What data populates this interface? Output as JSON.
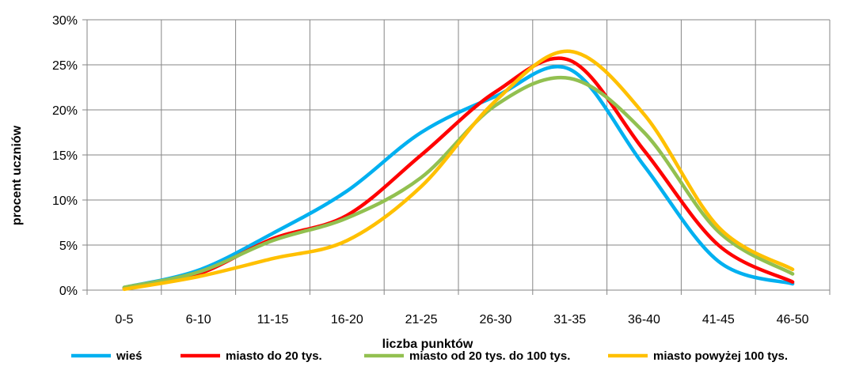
{
  "chart_data": {
    "type": "line",
    "title": "",
    "xlabel": "liczba punktów",
    "ylabel": "procent  uczniów",
    "categories": [
      "0-5",
      "6-10",
      "11-15",
      "16-20",
      "21-25",
      "26-30",
      "31-35",
      "36-40",
      "41-45",
      "46-50"
    ],
    "ylim": [
      0,
      30
    ],
    "yticks": [
      "0%",
      "5%",
      "10%",
      "15%",
      "20%",
      "25%",
      "30%"
    ],
    "grid": true,
    "legend_position": "bottom",
    "series": [
      {
        "name": "wieś",
        "color": "#00B0F0",
        "values": [
          0.3,
          2.2,
          6.3,
          11.0,
          17.5,
          21.5,
          24.5,
          13.8,
          3.2,
          0.7
        ]
      },
      {
        "name": "miasto do 20 tys.",
        "color": "#FF0000",
        "values": [
          0.2,
          1.8,
          5.7,
          8.3,
          15.0,
          22.0,
          25.5,
          15.5,
          5.0,
          0.9
        ]
      },
      {
        "name": "miasto od 20 tys. do 100 tys.",
        "color": "#92C050",
        "values": [
          0.3,
          2.0,
          5.5,
          8.0,
          12.5,
          20.5,
          23.5,
          17.5,
          6.5,
          1.8
        ]
      },
      {
        "name": "miasto powyżej 100 tys.",
        "color": "#FFC000",
        "values": [
          0.1,
          1.5,
          3.5,
          5.5,
          11.5,
          21.0,
          26.5,
          19.5,
          7.0,
          2.3
        ]
      }
    ]
  }
}
